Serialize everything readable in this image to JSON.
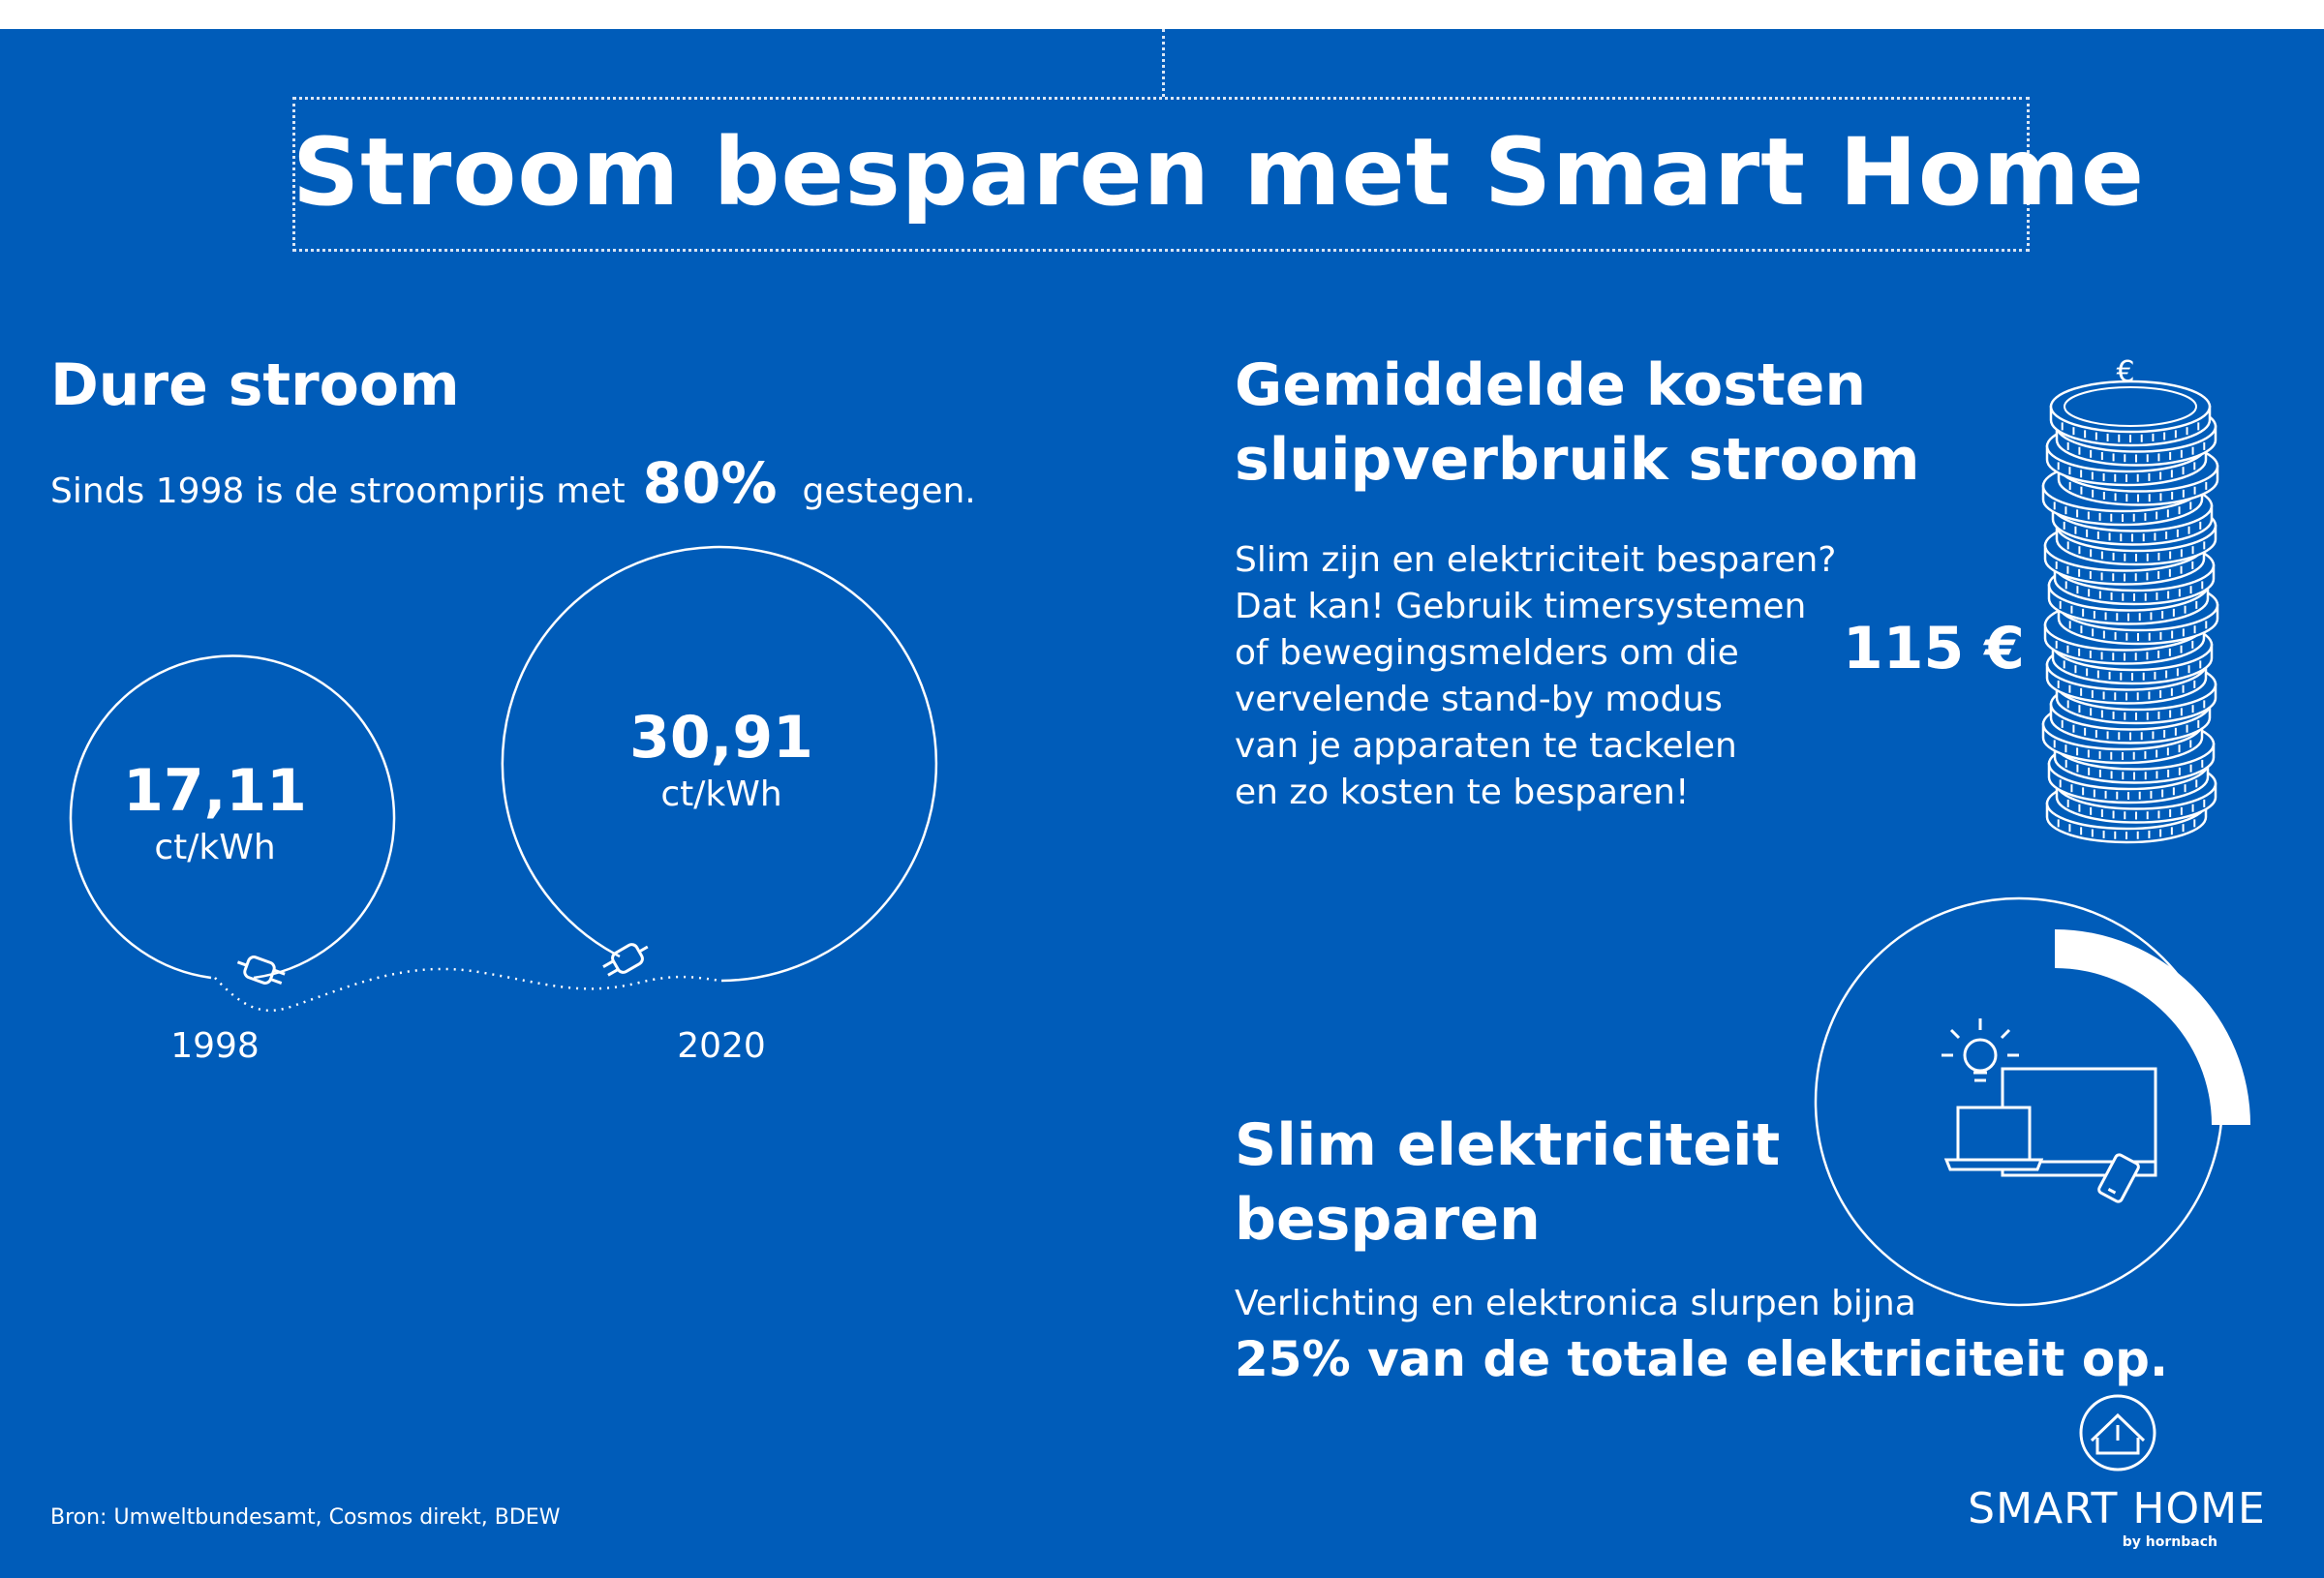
{
  "title": "Stroom besparen met Smart Home",
  "section_dure": {
    "heading": "Dure stroom",
    "sentence_before": "Sinds 1998 is de stroomprijs met",
    "percent": "80%",
    "sentence_after": "gestegen.",
    "price_1998": {
      "value": "17,11",
      "unit": "ct/kWh",
      "year": "1998"
    },
    "price_2020": {
      "value": "30,91",
      "unit": "ct/kWh",
      "year": "2020"
    }
  },
  "section_kosten": {
    "heading_line1": "Gemiddelde kosten",
    "heading_line2": "sluipverbruik stroom",
    "body_lines": [
      "Slim zijn en elektriciteit besparen?",
      "Dat kan! Gebruik timersystemen",
      "of bewegingsmelders om die",
      "vervelende stand-by modus",
      "van je apparaten te tackelen",
      "en zo kosten te besparen!"
    ],
    "amount": "115 €",
    "coin_symbol": "€"
  },
  "section_slim": {
    "heading_line1": "Slim elektriciteit",
    "heading_line2": "besparen",
    "body_line": "Verlichting en elektronica slurpen bijna",
    "highlight_line": "25% van de totale elektriciteit op.",
    "share_fraction": 0.25
  },
  "source": "Bron: Umweltbundesamt, Cosmos direkt, BDEW",
  "brand": {
    "name": "SMART HOME",
    "sub": "by hornbach"
  },
  "colors": {
    "background": "#005cb9",
    "foreground": "#ffffff",
    "page": "#ffffff"
  }
}
